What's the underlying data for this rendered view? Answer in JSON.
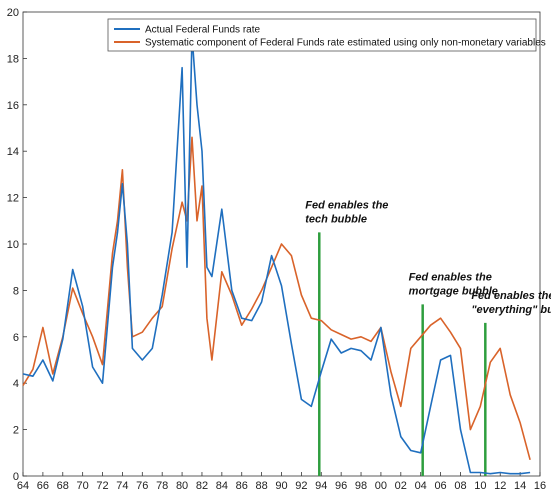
{
  "chart_data": {
    "type": "line",
    "title": "",
    "xlabel": "",
    "ylabel": "",
    "xlim": [
      1964,
      2016
    ],
    "ylim": [
      0,
      20
    ],
    "x_ticks": [
      "64",
      "66",
      "68",
      "70",
      "72",
      "74",
      "76",
      "78",
      "80",
      "82",
      "84",
      "86",
      "88",
      "90",
      "92",
      "94",
      "96",
      "98",
      "00",
      "02",
      "04",
      "06",
      "08",
      "10",
      "12",
      "14",
      "16"
    ],
    "y_ticks": [
      "0",
      "2",
      "4",
      "6",
      "8",
      "10",
      "12",
      "14",
      "16",
      "18",
      "20"
    ],
    "legend_position": "top-right",
    "grid": false,
    "series": [
      {
        "name": "Actual Federal Funds rate",
        "color": "#1f6fbf",
        "points": [
          [
            1964,
            4.4
          ],
          [
            1965,
            4.3
          ],
          [
            1966,
            5.0
          ],
          [
            1967,
            4.1
          ],
          [
            1968,
            5.9
          ],
          [
            1969,
            8.9
          ],
          [
            1970,
            7.3
          ],
          [
            1971,
            4.7
          ],
          [
            1972,
            4.0
          ],
          [
            1973,
            9.0
          ],
          [
            1973.5,
            10.5
          ],
          [
            1974,
            12.6
          ],
          [
            1974.5,
            10.0
          ],
          [
            1975,
            5.5
          ],
          [
            1976,
            5.0
          ],
          [
            1977,
            5.5
          ],
          [
            1978,
            7.8
          ],
          [
            1979,
            10.5
          ],
          [
            1980,
            17.6
          ],
          [
            1980.5,
            9.0
          ],
          [
            1981,
            19.0
          ],
          [
            1981.5,
            16.0
          ],
          [
            1982,
            14.0
          ],
          [
            1982.5,
            9.0
          ],
          [
            1983,
            8.6
          ],
          [
            1984,
            11.5
          ],
          [
            1985,
            8.0
          ],
          [
            1986,
            6.8
          ],
          [
            1987,
            6.7
          ],
          [
            1988,
            7.5
          ],
          [
            1989,
            9.5
          ],
          [
            1990,
            8.2
          ],
          [
            1991,
            5.7
          ],
          [
            1992,
            3.3
          ],
          [
            1993,
            3.0
          ],
          [
            1994,
            4.5
          ],
          [
            1995,
            5.9
          ],
          [
            1996,
            5.3
          ],
          [
            1997,
            5.5
          ],
          [
            1998,
            5.4
          ],
          [
            1999,
            5.0
          ],
          [
            2000,
            6.4
          ],
          [
            2001,
            3.5
          ],
          [
            2002,
            1.7
          ],
          [
            2003,
            1.1
          ],
          [
            2004,
            1.0
          ],
          [
            2005,
            3.0
          ],
          [
            2006,
            5.0
          ],
          [
            2007,
            5.2
          ],
          [
            2008,
            2.0
          ],
          [
            2009,
            0.15
          ],
          [
            2010,
            0.15
          ],
          [
            2011,
            0.1
          ],
          [
            2012,
            0.15
          ],
          [
            2013,
            0.1
          ],
          [
            2014,
            0.1
          ],
          [
            2015,
            0.15
          ]
        ]
      },
      {
        "name": "Systematic component of Federal Funds rate estimated using only non-monetary variables",
        "color": "#d9632a",
        "points": [
          [
            1964,
            3.9
          ],
          [
            1965,
            4.6
          ],
          [
            1966,
            6.4
          ],
          [
            1967,
            4.4
          ],
          [
            1968,
            6.0
          ],
          [
            1969,
            8.1
          ],
          [
            1970,
            7.0
          ],
          [
            1971,
            6.0
          ],
          [
            1972,
            4.8
          ],
          [
            1973,
            9.6
          ],
          [
            1973.5,
            11.0
          ],
          [
            1974,
            13.2
          ],
          [
            1974.5,
            9.0
          ],
          [
            1975,
            6.0
          ],
          [
            1976,
            6.2
          ],
          [
            1977,
            6.8
          ],
          [
            1978,
            7.3
          ],
          [
            1979,
            9.8
          ],
          [
            1980,
            11.8
          ],
          [
            1980.5,
            11.0
          ],
          [
            1981,
            14.6
          ],
          [
            1981.5,
            11.0
          ],
          [
            1982,
            12.5
          ],
          [
            1982.5,
            6.8
          ],
          [
            1983,
            5.0
          ],
          [
            1984,
            8.8
          ],
          [
            1985,
            7.8
          ],
          [
            1986,
            6.5
          ],
          [
            1987,
            7.2
          ],
          [
            1988,
            8.0
          ],
          [
            1989,
            9.0
          ],
          [
            1990,
            10.0
          ],
          [
            1991,
            9.5
          ],
          [
            1992,
            7.8
          ],
          [
            1993,
            6.8
          ],
          [
            1994,
            6.7
          ],
          [
            1995,
            6.3
          ],
          [
            1996,
            6.1
          ],
          [
            1997,
            5.9
          ],
          [
            1998,
            6.0
          ],
          [
            1999,
            5.8
          ],
          [
            2000,
            6.4
          ],
          [
            2001,
            4.5
          ],
          [
            2002,
            3.0
          ],
          [
            2003,
            5.5
          ],
          [
            2004,
            6.0
          ],
          [
            2005,
            6.5
          ],
          [
            2006,
            6.8
          ],
          [
            2007,
            6.2
          ],
          [
            2008,
            5.5
          ],
          [
            2009,
            2.0
          ],
          [
            2010,
            3.0
          ],
          [
            2011,
            4.9
          ],
          [
            2012,
            5.5
          ],
          [
            2013,
            3.5
          ],
          [
            2014,
            2.3
          ],
          [
            2015,
            0.7
          ]
        ]
      }
    ],
    "annotations": [
      {
        "line1": "Fed enables the",
        "line2": "tech bubble",
        "x": 1993.8,
        "y_top": 10.5
      },
      {
        "line1": "Fed enables the",
        "line2": "mortgage bubble",
        "x": 2004.2,
        "y_top": 7.4
      },
      {
        "line1": "Fed enables the",
        "line2": "\"everything\" bubble",
        "x": 2010.5,
        "y_top": 6.6
      }
    ],
    "annotation_line_color": "#2e9e3e"
  }
}
